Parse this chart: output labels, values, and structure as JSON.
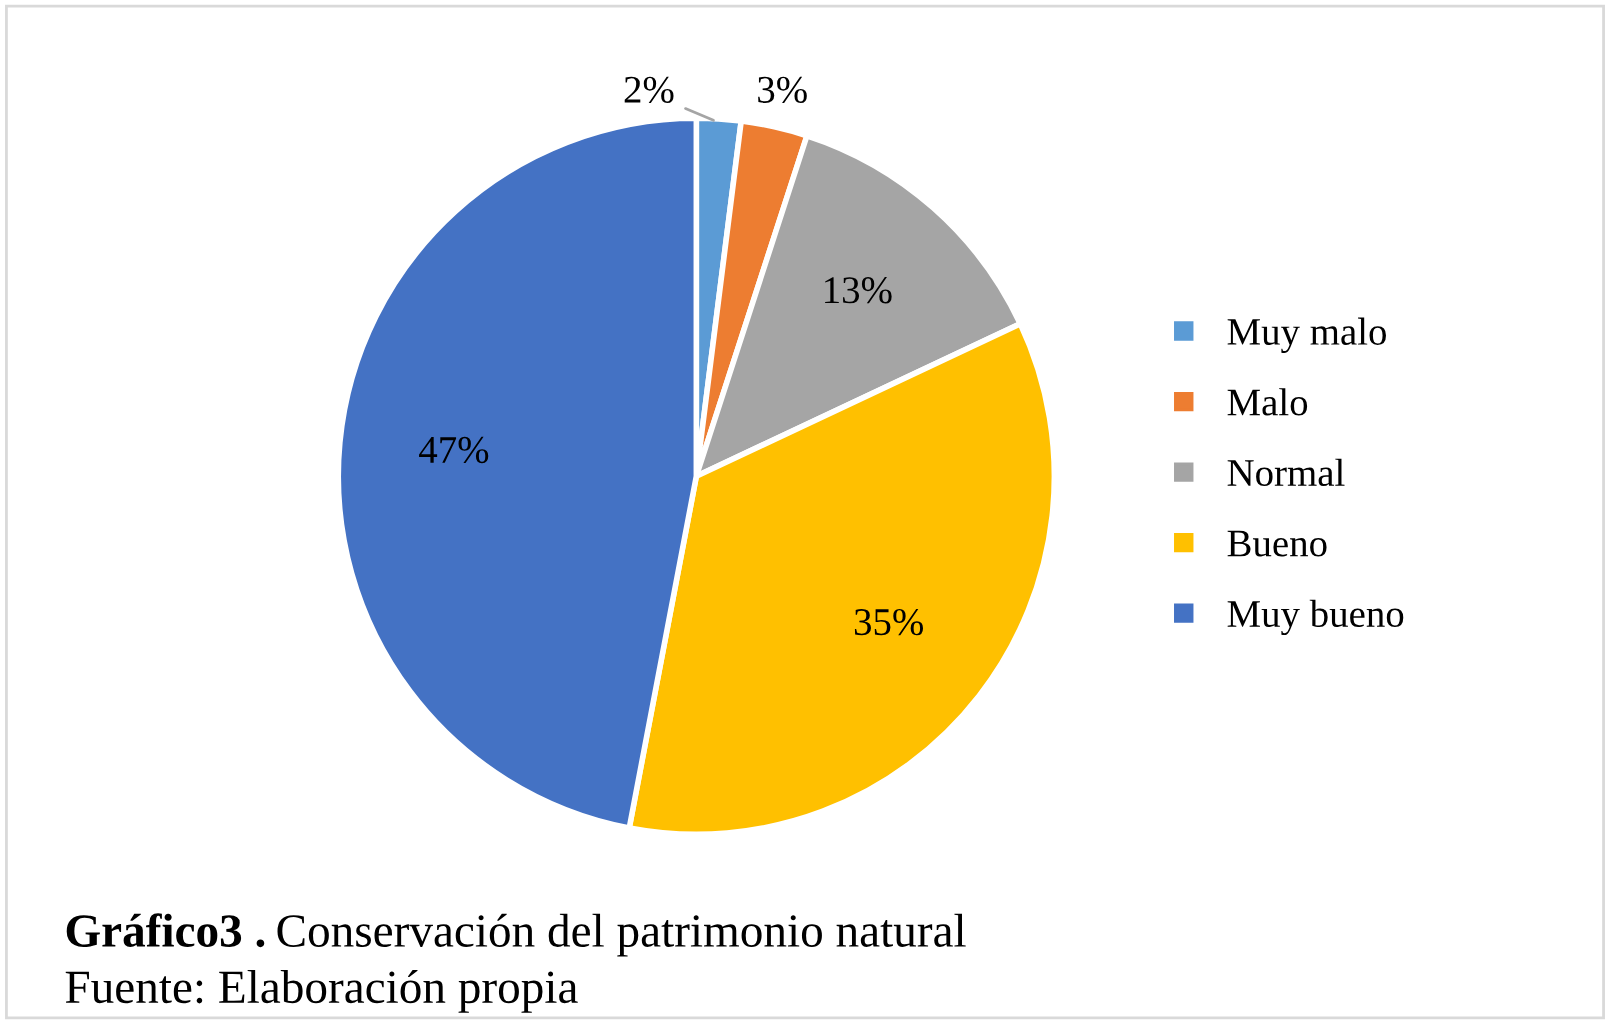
{
  "chart_data": {
    "type": "pie",
    "title": "Gráfico3 .",
    "subtitle": "Conservación del patrimonio natural",
    "annotations": [
      "Fuente: Elaboración propia"
    ],
    "categories": [
      "Muy malo",
      "Malo",
      "Normal",
      "Bueno",
      "Muy bueno"
    ],
    "values": [
      2,
      3,
      13,
      35,
      47
    ],
    "value_labels": [
      "2%",
      "3%",
      "13%",
      "35%",
      "47%"
    ],
    "colors": [
      "#5b9bd5",
      "#ed7d31",
      "#a5a5a5",
      "#ffc000",
      "#4472c4"
    ],
    "legend": "right"
  }
}
